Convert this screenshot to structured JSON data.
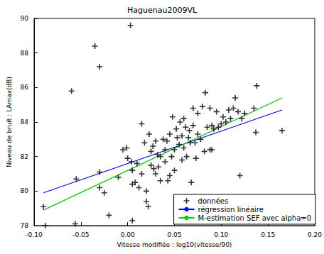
{
  "chart_data": {
    "type": "scatter",
    "title": "Haguenau2009VL",
    "x_label": "Vitesse modifiée : log10(vitesse/90)",
    "y_label": "Niveau de bruit : LAmax(dB)",
    "xlim": [
      -0.1,
      0.2
    ],
    "xticks": [
      {
        "value": -0.1,
        "label": "-0.10"
      },
      {
        "value": -0.05,
        "label": "-0.05"
      },
      {
        "value": 0,
        "label": "0.00"
      },
      {
        "value": 0.05,
        "label": "0.05"
      },
      {
        "value": 0.1,
        "label": "0.10"
      },
      {
        "value": 0.15,
        "label": "0.15"
      },
      {
        "value": 0.2,
        "label": "0.20"
      }
    ],
    "ylim": [
      78,
      90
    ],
    "yticks": [
      78,
      80,
      82,
      84,
      86,
      88,
      90
    ],
    "grid": false,
    "legend": "lower right",
    "series": [
      {
        "name": "données",
        "type": "scatter",
        "marker": "cross",
        "color": "#000000",
        "x": [
          -0.09,
          -0.088,
          -0.06,
          -0.055,
          -0.056,
          -0.035,
          -0.03,
          -0.03,
          -0.03,
          -0.025,
          -0.02,
          -0.005,
          0.003,
          -0.001,
          0.004,
          0.005,
          0.005,
          0.005,
          0.008,
          0.01,
          0.012,
          0.015,
          0.018,
          0.02,
          0.02,
          0.022,
          0.023,
          0.025,
          0.025,
          0.028,
          0.03,
          0.03,
          0.032,
          0.033,
          0.035,
          0.035,
          0.038,
          0.04,
          0.04,
          0.042,
          0.043,
          0.045,
          0.045,
          0.047,
          0.048,
          0.05,
          0.05,
          0.052,
          0.053,
          0.055,
          0.056,
          0.058,
          0.058,
          0.06,
          0.062,
          0.063,
          0.065,
          0.066,
          0.068,
          0.07,
          0.07,
          0.072,
          0.073,
          0.075,
          0.075,
          0.078,
          0.08,
          0.082,
          0.083,
          0.085,
          0.088,
          0.088,
          0.09,
          0.09,
          0.092,
          0.095,
          0.1,
          0.102,
          0.105,
          0.11,
          0.113,
          0.115,
          0.118,
          0.12,
          0.122,
          0.125,
          0.135,
          0.137,
          0.138,
          0.165,
          -0.01,
          0.0,
          0.015,
          0.027,
          0.06,
          0.067,
          0.097,
          0.108
        ],
        "values": [
          79.1,
          78.0,
          85.8,
          80.7,
          78.1,
          88.4,
          87.2,
          81.1,
          80.2,
          79.9,
          78.6,
          82.4,
          89.6,
          82.5,
          81.7,
          81.2,
          80.4,
          78.3,
          80.5,
          81.6,
          80.2,
          83.9,
          82.8,
          80.0,
          79.4,
          79.1,
          83.3,
          82.3,
          81.5,
          81.3,
          81.0,
          82.9,
          82.1,
          81.4,
          82.0,
          80.6,
          83.0,
          82.4,
          81.7,
          82.9,
          80.6,
          83.3,
          80.9,
          82.0,
          84.3,
          82.4,
          81.2,
          83.6,
          83.1,
          82.7,
          84.0,
          83.2,
          81.8,
          82.5,
          83.7,
          82.0,
          83.1,
          83.5,
          80.5,
          84.8,
          83.8,
          82.8,
          81.9,
          84.5,
          83.3,
          83.0,
          84.9,
          82.3,
          85.7,
          83.7,
          84.8,
          82.4,
          83.8,
          82.4,
          83.6,
          84.6,
          83.9,
          84.3,
          84.0,
          84.2,
          84.8,
          85.4,
          84.6,
          80.9,
          84.2,
          84.5,
          84.8,
          83.4,
          86.1,
          83.5,
          80.8,
          81.9,
          81.0,
          82.6,
          84.2,
          82.8,
          83.7,
          84.7
        ]
      },
      {
        "name": "régression linéaire",
        "type": "line",
        "line_style": "solid",
        "color": "#0000ff",
        "x": [
          -0.09,
          0.165
        ],
        "values": [
          79.9,
          84.7
        ]
      },
      {
        "name": "M-estimation SEF avec alpha=0",
        "type": "line",
        "line_style": "solid",
        "color": "#00cc00",
        "x": [
          -0.09,
          0.165
        ],
        "values": [
          78.9,
          85.4
        ]
      }
    ]
  }
}
